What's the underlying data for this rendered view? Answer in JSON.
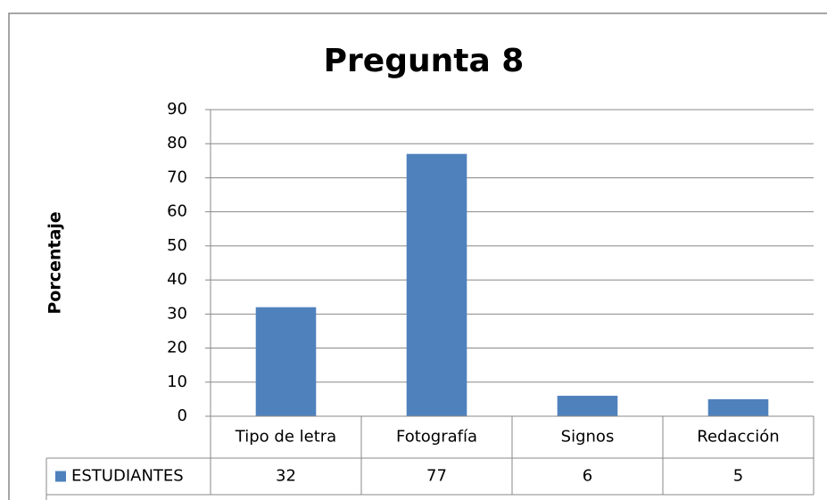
{
  "chart_data": {
    "type": "bar",
    "title": "Pregunta 8",
    "ylabel": "Porcentaje",
    "categories": [
      "Tipo de letra",
      "Fotografía",
      "Signos",
      "Redacción"
    ],
    "series": [
      {
        "name": "ESTUDIANTES",
        "color": "#4f81bd",
        "values": [
          32,
          77,
          6,
          5
        ]
      }
    ],
    "ylim": [
      0,
      90
    ],
    "yticks": [
      0,
      10,
      20,
      30,
      40,
      50,
      60,
      70,
      80,
      90
    ],
    "grid": true,
    "data_table": true
  }
}
